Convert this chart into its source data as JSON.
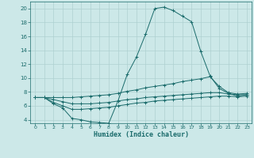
{
  "xlabel": "Humidex (Indice chaleur)",
  "xlim": [
    -0.5,
    23.5
  ],
  "ylim": [
    3.5,
    21.0
  ],
  "yticks": [
    4,
    6,
    8,
    10,
    12,
    14,
    16,
    18,
    20
  ],
  "xticks": [
    0,
    1,
    2,
    3,
    4,
    5,
    6,
    7,
    8,
    9,
    10,
    11,
    12,
    13,
    14,
    15,
    16,
    17,
    18,
    19,
    20,
    21,
    22,
    23
  ],
  "bg_color": "#cce8e8",
  "line_color": "#1a6b6b",
  "grid_color": "#aed0d0",
  "curve_main": {
    "x": [
      0,
      1,
      2,
      3,
      4,
      5,
      6,
      7,
      8,
      9,
      10,
      11,
      12,
      13,
      14,
      15,
      16,
      17,
      18,
      19,
      20,
      21,
      22,
      23
    ],
    "y": [
      7.2,
      7.2,
      6.3,
      5.7,
      4.2,
      4.0,
      3.7,
      3.6,
      3.5,
      6.7,
      10.5,
      13.0,
      16.3,
      20.0,
      20.2,
      19.7,
      18.9,
      18.1,
      13.8,
      10.3,
      8.5,
      7.8,
      7.4,
      7.6
    ]
  },
  "curve_upper": {
    "x": [
      0,
      1,
      2,
      3,
      4,
      5,
      6,
      7,
      8,
      9,
      10,
      11,
      12,
      13,
      14,
      15,
      16,
      17,
      18,
      19,
      20,
      21,
      22,
      23
    ],
    "y": [
      7.2,
      7.2,
      7.2,
      7.2,
      7.2,
      7.3,
      7.4,
      7.5,
      7.6,
      7.8,
      8.1,
      8.3,
      8.6,
      8.8,
      9.0,
      9.2,
      9.5,
      9.7,
      9.9,
      10.2,
      8.8,
      7.9,
      7.7,
      7.8
    ]
  },
  "curve_lower1": {
    "x": [
      0,
      1,
      2,
      3,
      4,
      5,
      6,
      7,
      8,
      9,
      10,
      11,
      12,
      13,
      14,
      15,
      16,
      17,
      18,
      19,
      20,
      21,
      22,
      23
    ],
    "y": [
      7.2,
      7.2,
      6.9,
      6.6,
      6.3,
      6.3,
      6.3,
      6.4,
      6.5,
      6.7,
      6.9,
      7.0,
      7.2,
      7.3,
      7.4,
      7.5,
      7.6,
      7.7,
      7.8,
      7.9,
      7.9,
      7.7,
      7.6,
      7.6
    ]
  },
  "curve_lower2": {
    "x": [
      0,
      1,
      2,
      3,
      4,
      5,
      6,
      7,
      8,
      9,
      10,
      11,
      12,
      13,
      14,
      15,
      16,
      17,
      18,
      19,
      20,
      21,
      22,
      23
    ],
    "y": [
      7.2,
      7.2,
      6.5,
      6.0,
      5.5,
      5.5,
      5.6,
      5.7,
      5.8,
      6.0,
      6.2,
      6.4,
      6.5,
      6.7,
      6.8,
      6.9,
      7.0,
      7.1,
      7.2,
      7.3,
      7.4,
      7.4,
      7.3,
      7.4
    ]
  }
}
